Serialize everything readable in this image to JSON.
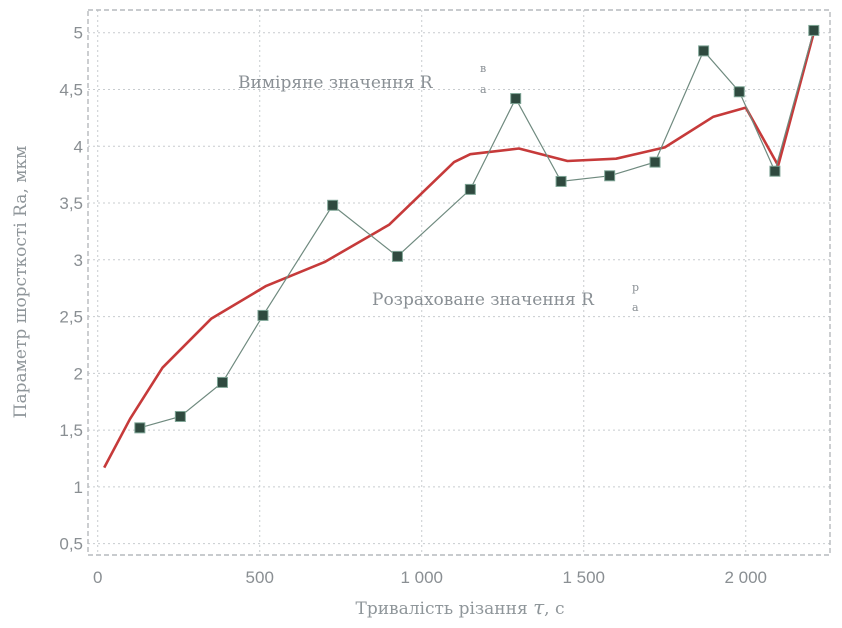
{
  "chart_data": {
    "type": "line",
    "xlabel": "Тривалість різання",
    "xlabel_symbol": "τ",
    "xlabel_unit": ", с",
    "ylabel": "Параметр шорсткості Ra, мкм",
    "xlim": [
      -30,
      2260
    ],
    "ylim": [
      0.4,
      5.2
    ],
    "x_ticks": [
      0,
      500,
      1000,
      1500,
      2000
    ],
    "x_tick_labels": [
      "0",
      "500",
      "1 000",
      "1 500",
      "2 000"
    ],
    "y_ticks": [
      0.5,
      1,
      1.5,
      2,
      2.5,
      3,
      3.5,
      4,
      4.5,
      5
    ],
    "y_tick_labels": [
      "0,5",
      "1",
      "1,5",
      "2",
      "2,5",
      "3",
      "3,5",
      "4",
      "4,5",
      "5"
    ],
    "grid": true,
    "series": [
      {
        "name": "Виміряне значення R_a^в",
        "color": "#6f8a7f",
        "marker_color": "#2f4a3f",
        "marker": "square",
        "x": [
          130,
          255,
          385,
          510,
          725,
          925,
          1150,
          1290,
          1430,
          1580,
          1720,
          1870,
          1980,
          2090,
          2210
        ],
        "y": [
          1.52,
          1.62,
          1.92,
          2.51,
          3.48,
          3.03,
          3.62,
          4.42,
          3.69,
          3.74,
          3.86,
          4.84,
          4.48,
          3.78,
          5.02
        ]
      },
      {
        "name": "Розраховане значення R_a^р",
        "color": "#c63a3a",
        "marker": "none",
        "x": [
          20,
          100,
          200,
          350,
          520,
          700,
          900,
          1100,
          1150,
          1300,
          1450,
          1600,
          1750,
          1900,
          2000,
          2100,
          2210
        ],
        "y": [
          1.17,
          1.6,
          2.05,
          2.48,
          2.77,
          2.98,
          3.31,
          3.86,
          3.93,
          3.98,
          3.87,
          3.89,
          3.99,
          4.26,
          4.34,
          3.83,
          5.0
        ]
      }
    ],
    "annotations": [
      {
        "base": "Виміряне значення R",
        "sup": "в",
        "sub": "a"
      },
      {
        "base": "Розраховане значення R",
        "sup": "р",
        "sub": "a"
      }
    ]
  }
}
